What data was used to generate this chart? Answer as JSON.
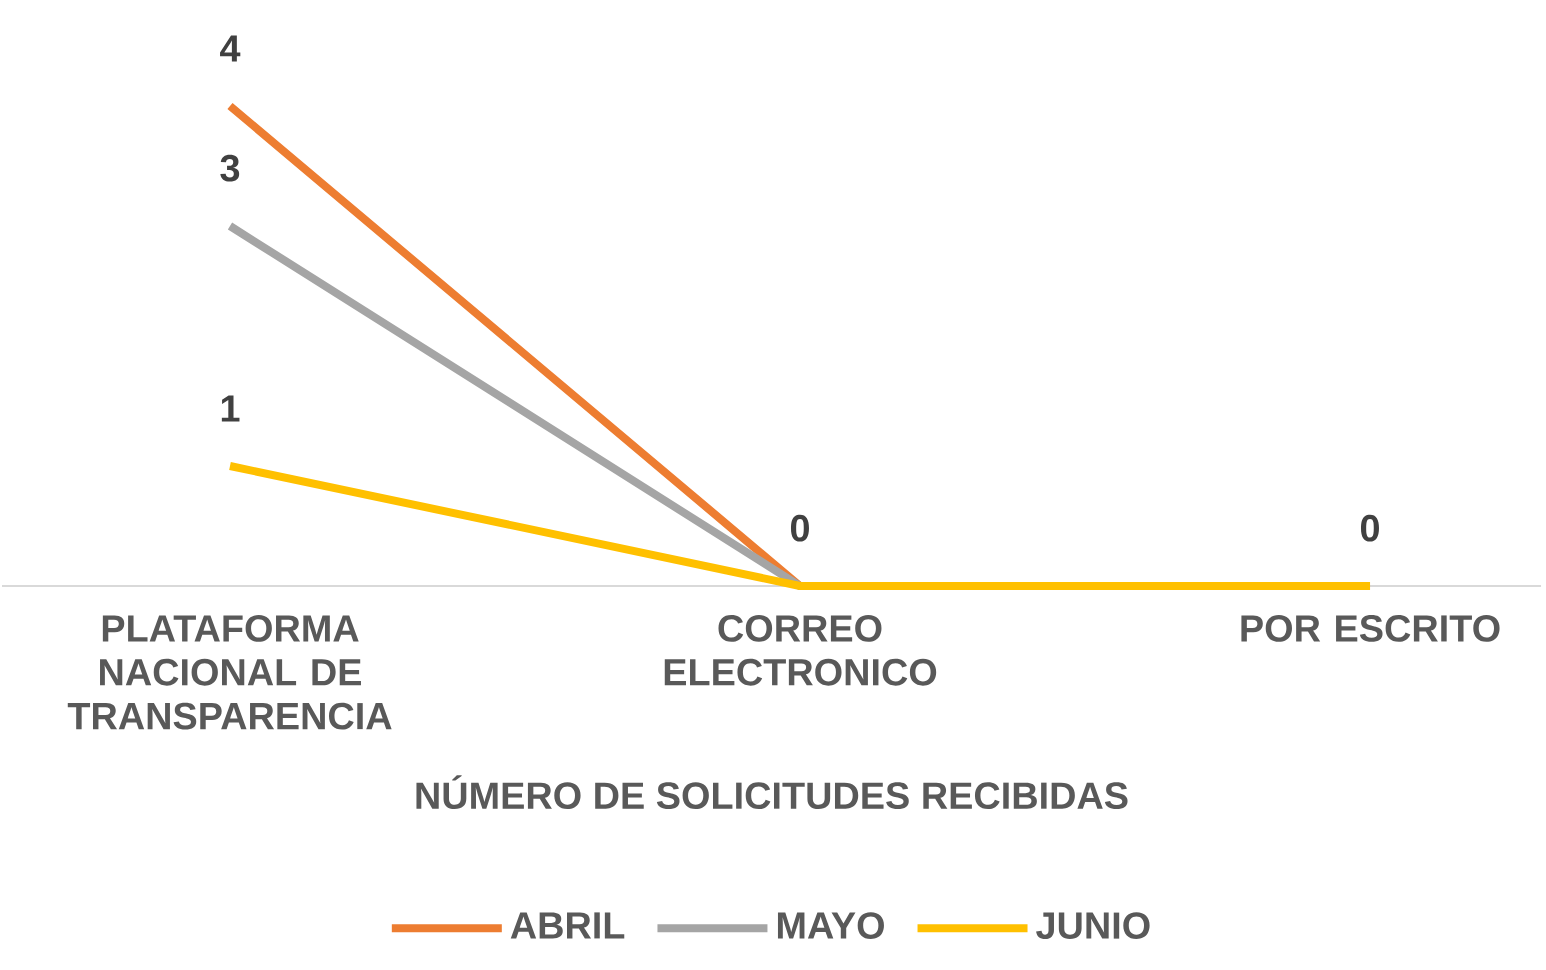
{
  "chart_data": {
    "type": "line",
    "xlabel": "NÚMERO DE SOLICITUDES RECIBIDAS",
    "categories": [
      "PLATAFORMA NACIONAL DE TRANSPARENCIA",
      "CORREO ELECTRONICO",
      "POR ESCRITO"
    ],
    "series": [
      {
        "name": "ABRIL",
        "color": "#ed7d31",
        "values": [
          4,
          0,
          0
        ],
        "value_labels": [
          "4",
          "0",
          "0"
        ]
      },
      {
        "name": "MAYO",
        "color": "#a5a5a5",
        "values": [
          3,
          0,
          0
        ],
        "value_labels": [
          "3",
          null,
          null
        ]
      },
      {
        "name": "JUNIO",
        "color": "#ffc000",
        "values": [
          1,
          0,
          0
        ],
        "value_labels": [
          "1",
          null,
          null
        ]
      }
    ],
    "legend": "bottom",
    "line_style": "solid"
  }
}
